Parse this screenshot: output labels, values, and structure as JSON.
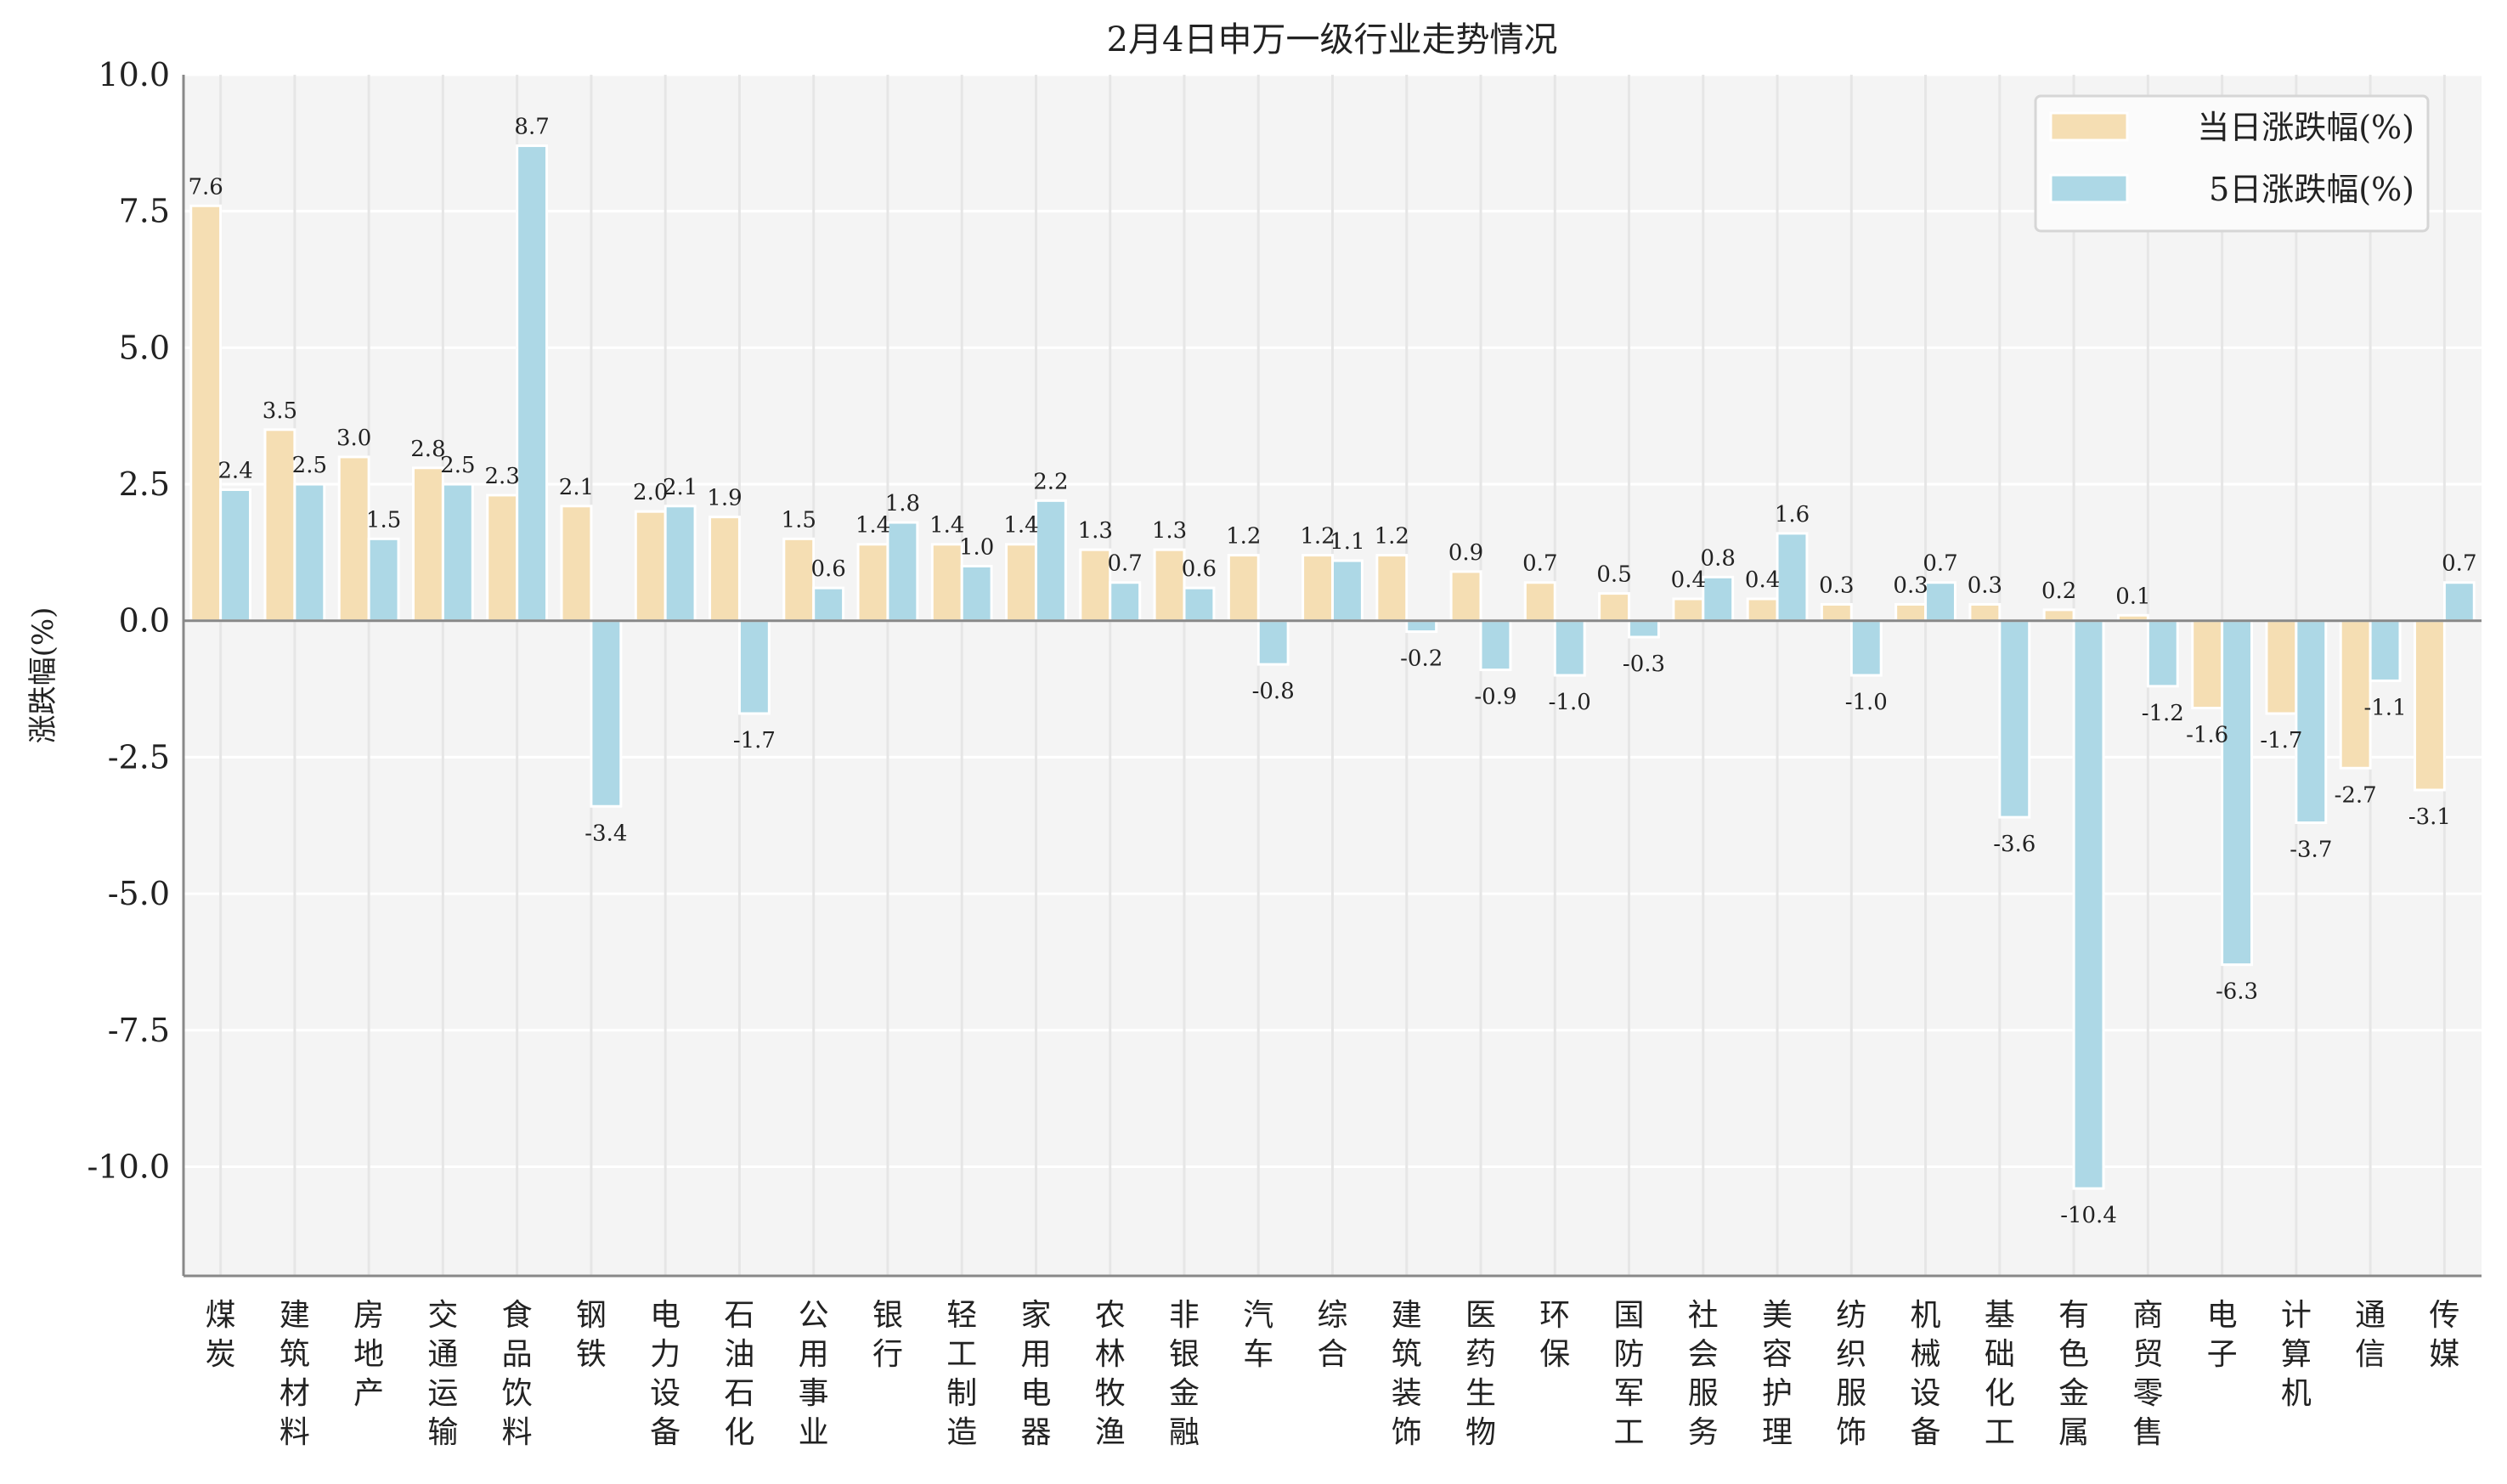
{
  "chart_data": {
    "type": "bar",
    "title": "2月4日申万一级行业走势情况",
    "xlabel": "",
    "ylabel": "涨跌幅(%)",
    "ylim": [
      -12,
      10
    ],
    "yticks": [
      "10.0",
      "7.5",
      "5.0",
      "2.5",
      "0.0",
      "-2.5",
      "-5.0",
      "-7.5",
      "-10.0"
    ],
    "ytick_values": [
      10,
      7.5,
      5,
      2.5,
      0,
      -2.5,
      -5,
      -7.5,
      -10
    ],
    "grid": true,
    "legend_position": "top-right",
    "categories": [
      "煤炭",
      "建筑材料",
      "房地产",
      "交通运输",
      "食品饮料",
      "钢铁",
      "电力设备",
      "石油石化",
      "公用事业",
      "银行",
      "轻工制造",
      "家用电器",
      "农林牧渔",
      "非银金融",
      "汽车",
      "综合",
      "建筑装饰",
      "医药生物",
      "环保",
      "国防军工",
      "社会服务",
      "美容护理",
      "纺织服饰",
      "机械设备",
      "基础化工",
      "有色金属",
      "商贸零售",
      "电子",
      "计算机",
      "通信",
      "传媒"
    ],
    "series": [
      {
        "name": "当日涨跌幅(%)",
        "color": "#F5DEB3",
        "values": [
          7.6,
          3.5,
          3.0,
          2.8,
          2.3,
          2.1,
          2.0,
          1.9,
          1.5,
          1.4,
          1.4,
          1.4,
          1.3,
          1.3,
          1.2,
          1.2,
          1.2,
          0.9,
          0.7,
          0.5,
          0.4,
          0.4,
          0.3,
          0.3,
          0.3,
          0.2,
          0.1,
          -1.6,
          -1.7,
          -2.7,
          -3.1
        ]
      },
      {
        "name": "5日涨跌幅(%)",
        "color": "#ADD8E6",
        "values": [
          2.4,
          2.5,
          1.5,
          2.5,
          8.7,
          -3.4,
          2.1,
          -1.7,
          0.6,
          1.8,
          1.0,
          2.2,
          0.7,
          0.6,
          -0.8,
          1.1,
          -0.2,
          -0.9,
          -1.0,
          -0.3,
          0.8,
          1.6,
          -1.0,
          0.7,
          -3.6,
          -10.4,
          -1.2,
          -6.3,
          -3.7,
          -1.1,
          0.7
        ]
      }
    ]
  }
}
